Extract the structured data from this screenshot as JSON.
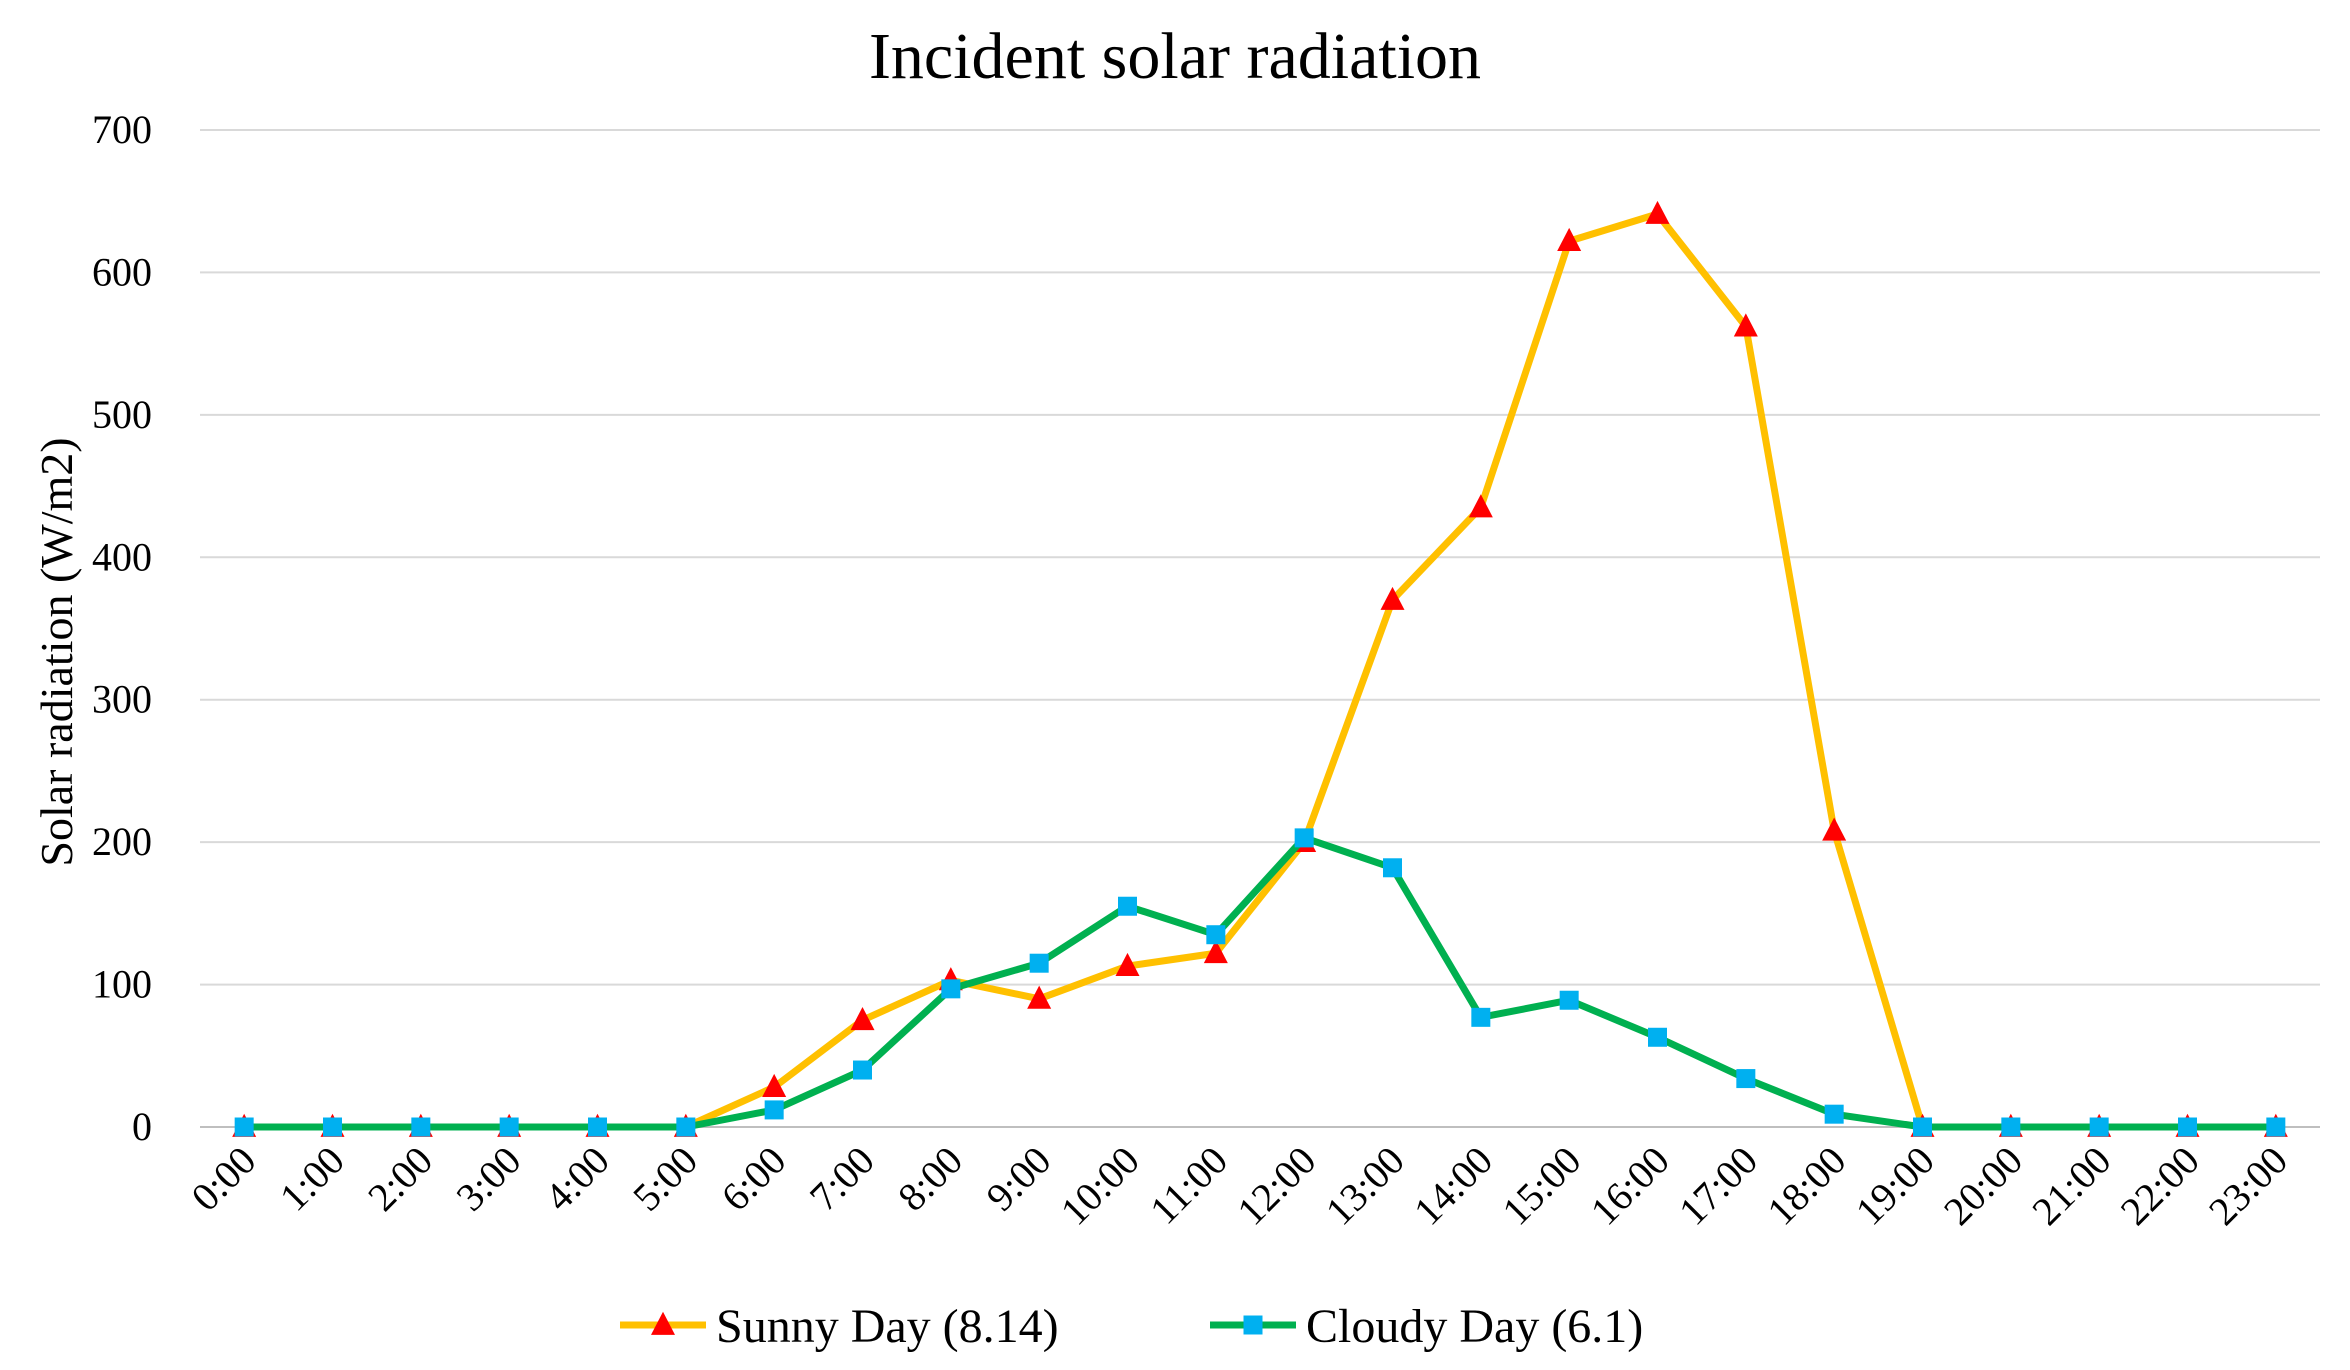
{
  "chart_data": {
    "type": "line",
    "title": "Incident solar radiation",
    "xlabel": "",
    "ylabel": "Solar radiation  (W/m2)",
    "ylim": [
      0,
      700
    ],
    "yticks": [
      0,
      100,
      200,
      300,
      400,
      500,
      600,
      700
    ],
    "grid": true,
    "legend_position": "bottom-center",
    "categories": [
      "0:00",
      "1:00",
      "2:00",
      "3:00",
      "4:00",
      "5:00",
      "6:00",
      "7:00",
      "8:00",
      "9:00",
      "10:00",
      "11:00",
      "12:00",
      "13:00",
      "14:00",
      "15:00",
      "16:00",
      "17:00",
      "18:00",
      "19:00",
      "20:00",
      "21:00",
      "22:00",
      "23:00"
    ],
    "series": [
      {
        "name": "Sunny Day (8.14)",
        "line_color": "#FFC000",
        "marker_color": "#FF0000",
        "marker": "triangle",
        "values": [
          0,
          0,
          0,
          0,
          0,
          0,
          28,
          75,
          103,
          90,
          113,
          122,
          200,
          370,
          435,
          622,
          641,
          562,
          208,
          0,
          0,
          0,
          0,
          0
        ]
      },
      {
        "name": "Cloudy Day (6.1)",
        "line_color": "#00B050",
        "marker_color": "#00B0F0",
        "marker": "square",
        "values": [
          0,
          0,
          0,
          0,
          0,
          0,
          12,
          40,
          97,
          115,
          155,
          135,
          203,
          182,
          77,
          89,
          63,
          34,
          9,
          0,
          0,
          0,
          0,
          0
        ]
      }
    ]
  }
}
